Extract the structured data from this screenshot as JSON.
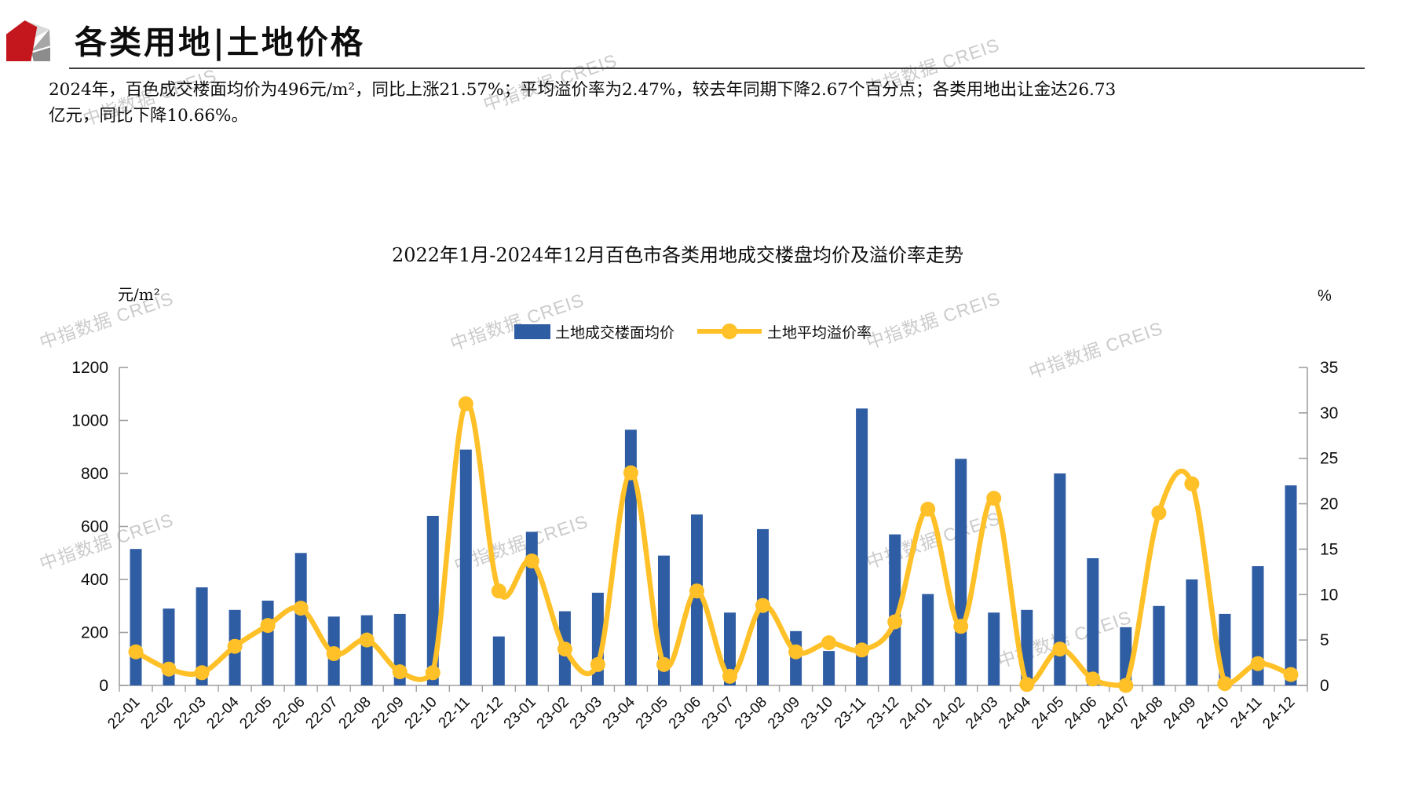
{
  "header": {
    "title": "各类用地|土地价格"
  },
  "summary": {
    "line1": "2024年，百色成交楼面均价为496元/m²，同比上涨21.57%；平均溢价率为2.47%，较去年同期下降2.67个百分点；各类用地出让金达26.73",
    "line2": "亿元，同比下降10.66%。"
  },
  "watermark_text": "中指数据 CREIS",
  "chart_data": {
    "type": "bar+line",
    "title": "2022年1月-2024年12月百色市各类用地成交楼盘均价及溢价率走势",
    "legend_position": "top",
    "grid": false,
    "categories": [
      "22-01",
      "22-02",
      "22-03",
      "22-04",
      "22-05",
      "22-06",
      "22-07",
      "22-08",
      "22-09",
      "22-10",
      "22-11",
      "22-12",
      "23-01",
      "23-02",
      "23-03",
      "23-04",
      "23-05",
      "23-06",
      "23-07",
      "23-08",
      "23-09",
      "23-10",
      "23-11",
      "23-12",
      "24-01",
      "24-02",
      "24-03",
      "24-04",
      "24-05",
      "24-06",
      "24-07",
      "24-08",
      "24-09",
      "24-10",
      "24-11",
      "24-12"
    ],
    "left_axis": {
      "unit": "元/m²",
      "min": 0,
      "max": 1200,
      "tick_step": 200
    },
    "right_axis": {
      "unit": "%",
      "min": 0,
      "max": 35,
      "tick_step": 5
    },
    "series": [
      {
        "name": "土地成交楼面均价",
        "chart": "bar",
        "axis": "left",
        "color": "#2F5DA4",
        "values": [
          515,
          290,
          370,
          285,
          320,
          500,
          260,
          265,
          270,
          640,
          890,
          185,
          580,
          280,
          350,
          965,
          490,
          645,
          275,
          590,
          205,
          130,
          1045,
          570,
          345,
          855,
          275,
          285,
          800,
          480,
          220,
          300,
          400,
          270,
          450,
          755
        ]
      },
      {
        "name": "土地平均溢价率",
        "chart": "line",
        "axis": "right",
        "color": "#FFC028",
        "values": [
          3.7,
          1.8,
          1.4,
          4.3,
          6.6,
          8.5,
          3.5,
          5.0,
          1.5,
          1.4,
          31.0,
          10.4,
          13.7,
          4.0,
          2.3,
          23.4,
          2.3,
          10.4,
          1.0,
          8.8,
          3.7,
          4.7,
          3.9,
          7.0,
          19.4,
          6.5,
          20.6,
          0.1,
          4.0,
          0.7,
          0.0,
          19.0,
          22.2,
          0.2,
          2.4,
          1.2
        ]
      }
    ]
  }
}
